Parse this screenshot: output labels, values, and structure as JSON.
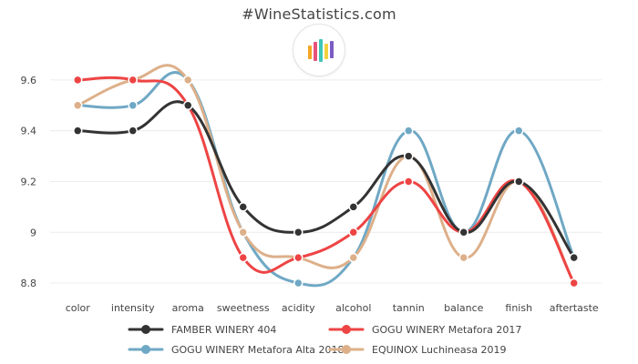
{
  "page": {
    "title": "#WineStatistics.com"
  },
  "logo": {
    "icon": "bar-chart-logo-icon",
    "colors": [
      "#f5a623",
      "#e8527a",
      "#3ec6b8",
      "#f2d13c",
      "#7b5cc4"
    ]
  },
  "chart_data": {
    "type": "line",
    "title": "",
    "xlabel": "",
    "ylabel": "",
    "categories": [
      "color",
      "intensity",
      "aroma",
      "sweetness",
      "acidity",
      "alcohol",
      "tannin",
      "balance",
      "finish",
      "aftertaste"
    ],
    "ylim": [
      8.75,
      9.7
    ],
    "yticks": [
      8.8,
      9,
      9.2,
      9.4,
      9.6
    ],
    "ytick_labels": [
      "8.8",
      "9",
      "9.2",
      "9.4",
      "9.6"
    ],
    "grid": true,
    "legend_position": "bottom",
    "series": [
      {
        "name": "FAMBER WINERY 404",
        "color": "#333333",
        "values": [
          9.4,
          9.4,
          9.5,
          9.1,
          9.0,
          9.1,
          9.3,
          9.0,
          9.2,
          8.9
        ]
      },
      {
        "name": "GOGU WINERY Metafora 2017",
        "color": "#ee4444",
        "values": [
          9.6,
          9.6,
          9.5,
          8.9,
          8.9,
          9.0,
          9.2,
          9.0,
          9.2,
          8.8
        ]
      },
      {
        "name": "GOGU WINERY Metafora Alta 2018",
        "color": "#6fa8c4",
        "values": [
          9.5,
          9.5,
          9.6,
          9.0,
          8.8,
          8.9,
          9.4,
          9.0,
          9.4,
          8.9
        ]
      },
      {
        "name": "EQUINOX Luchineasa 2019",
        "color": "#ddb08a",
        "values": [
          9.5,
          9.6,
          9.6,
          9.0,
          8.9,
          8.9,
          9.3,
          8.9,
          9.2,
          8.8
        ]
      }
    ]
  }
}
